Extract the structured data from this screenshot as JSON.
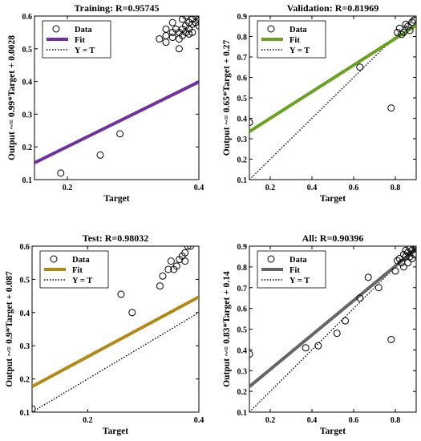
{
  "chart_data": [
    {
      "type": "scatter",
      "title": "Training: R=0.95745",
      "xlabel": "Target",
      "ylabel": "Output ~= 0.99*Target + 0.0028",
      "xlim": [
        0.15,
        0.4
      ],
      "ylim": [
        0.1,
        0.6
      ],
      "xticks": [
        0.2,
        0.4
      ],
      "xticklabels": [
        "0.2",
        "0.4"
      ],
      "yticks": [
        0.1,
        0.2,
        0.3,
        0.4,
        0.5,
        0.6
      ],
      "yticklabels": [
        "0.1",
        "0.2",
        "0.3",
        "0.4",
        "0.5",
        "0.6"
      ],
      "fit_color": "#7030A0",
      "fit": {
        "slope": 0.99,
        "intercept": 0.0028
      },
      "legend": {
        "position": "top-left",
        "entries": [
          "Data",
          "Fit",
          "Y = T"
        ]
      },
      "points": [
        [
          0.19,
          0.12
        ],
        [
          0.25,
          0.175
        ],
        [
          0.28,
          0.24
        ],
        [
          0.34,
          0.53
        ],
        [
          0.35,
          0.54
        ],
        [
          0.35,
          0.52
        ],
        [
          0.36,
          0.535
        ],
        [
          0.36,
          0.55
        ],
        [
          0.365,
          0.56
        ],
        [
          0.37,
          0.53
        ],
        [
          0.37,
          0.55
        ],
        [
          0.375,
          0.56
        ],
        [
          0.375,
          0.54
        ],
        [
          0.38,
          0.57
        ],
        [
          0.38,
          0.55
        ],
        [
          0.385,
          0.58
        ],
        [
          0.385,
          0.56
        ],
        [
          0.39,
          0.575
        ],
        [
          0.39,
          0.59
        ],
        [
          0.395,
          0.58
        ],
        [
          0.395,
          0.6
        ],
        [
          0.4,
          0.59
        ],
        [
          0.4,
          0.57
        ],
        [
          0.37,
          0.5
        ],
        [
          0.36,
          0.58
        ],
        [
          0.38,
          0.6
        ],
        [
          0.39,
          0.55
        ],
        [
          0.35,
          0.56
        ],
        [
          0.375,
          0.59
        ],
        [
          0.385,
          0.545
        ]
      ]
    },
    {
      "type": "scatter",
      "title": "Validation: R=0.81969",
      "xlabel": "Target",
      "ylabel": "Output ~= 0.65*Target + 0.27",
      "xlim": [
        0.1,
        0.9
      ],
      "ylim": [
        0.1,
        0.9
      ],
      "xticks": [
        0.2,
        0.4,
        0.6,
        0.8
      ],
      "xticklabels": [
        "0.2",
        "0.4",
        "0.6",
        "0.8"
      ],
      "yticks": [
        0.1,
        0.2,
        0.3,
        0.4,
        0.5,
        0.6,
        0.7,
        0.8,
        0.9
      ],
      "yticklabels": [
        "0.1",
        "0.2",
        "0.3",
        "0.4",
        "0.5",
        "0.6",
        "0.7",
        "0.8",
        "0.9"
      ],
      "fit_color": "#6AA121",
      "fit": {
        "slope": 0.65,
        "intercept": 0.27
      },
      "legend": {
        "position": "top-left",
        "entries": [
          "Data",
          "Fit",
          "Y = T"
        ]
      },
      "points": [
        [
          0.1,
          0.38
        ],
        [
          0.63,
          0.65
        ],
        [
          0.78,
          0.45
        ],
        [
          0.81,
          0.82
        ],
        [
          0.82,
          0.84
        ],
        [
          0.84,
          0.82
        ],
        [
          0.85,
          0.86
        ],
        [
          0.86,
          0.85
        ],
        [
          0.87,
          0.83
        ],
        [
          0.88,
          0.87
        ],
        [
          0.89,
          0.88
        ],
        [
          0.83,
          0.81
        ]
      ]
    },
    {
      "type": "scatter",
      "title": "Test: R=0.98032",
      "xlabel": "Target",
      "ylabel": "Output ~= 0.9*Target + 0.087",
      "xlim": [
        0.1,
        0.4
      ],
      "ylim": [
        0.1,
        0.6
      ],
      "xticks": [
        0.2,
        0.4
      ],
      "xticklabels": [
        "0.2",
        "0.4"
      ],
      "yticks": [
        0.1,
        0.2,
        0.3,
        0.4,
        0.5,
        0.6
      ],
      "yticklabels": [
        "0.1",
        "0.2",
        "0.3",
        "0.4",
        "0.5",
        "0.6"
      ],
      "fit_color": "#B38A1A",
      "fit": {
        "slope": 0.9,
        "intercept": 0.087
      },
      "legend": {
        "position": "top-left",
        "entries": [
          "Data",
          "Fit",
          "Y = T"
        ]
      },
      "points": [
        [
          0.1,
          0.11
        ],
        [
          0.26,
          0.455
        ],
        [
          0.28,
          0.4
        ],
        [
          0.33,
          0.48
        ],
        [
          0.335,
          0.51
        ],
        [
          0.345,
          0.53
        ],
        [
          0.35,
          0.555
        ],
        [
          0.355,
          0.53
        ],
        [
          0.36,
          0.54
        ],
        [
          0.365,
          0.56
        ],
        [
          0.37,
          0.57
        ],
        [
          0.375,
          0.58
        ],
        [
          0.38,
          0.6
        ],
        [
          0.385,
          0.6
        ],
        [
          0.375,
          0.555
        ]
      ]
    },
    {
      "type": "scatter",
      "title": "All: R=0.90396",
      "xlabel": "Target",
      "ylabel": "Output ~= 0.83*Target + 0.14",
      "xlim": [
        0.1,
        0.9
      ],
      "ylim": [
        0.1,
        0.9
      ],
      "xticks": [
        0.2,
        0.4,
        0.6,
        0.8
      ],
      "xticklabels": [
        "0.2",
        "0.4",
        "0.6",
        "0.8"
      ],
      "yticks": [
        0.1,
        0.2,
        0.3,
        0.4,
        0.5,
        0.6,
        0.7,
        0.8,
        0.9
      ],
      "yticklabels": [
        "0.1",
        "0.2",
        "0.3",
        "0.4",
        "0.5",
        "0.6",
        "0.7",
        "0.8",
        "0.9"
      ],
      "fit_color": "#666666",
      "fit": {
        "slope": 0.83,
        "intercept": 0.14
      },
      "legend": {
        "position": "top-left",
        "entries": [
          "Data",
          "Fit",
          "Y = T"
        ]
      },
      "points": [
        [
          0.1,
          0.38
        ],
        [
          0.37,
          0.41
        ],
        [
          0.43,
          0.42
        ],
        [
          0.52,
          0.48
        ],
        [
          0.56,
          0.54
        ],
        [
          0.63,
          0.65
        ],
        [
          0.67,
          0.75
        ],
        [
          0.72,
          0.7
        ],
        [
          0.78,
          0.45
        ],
        [
          0.8,
          0.78
        ],
        [
          0.82,
          0.84
        ],
        [
          0.83,
          0.82
        ],
        [
          0.84,
          0.86
        ],
        [
          0.85,
          0.85
        ],
        [
          0.86,
          0.87
        ],
        [
          0.87,
          0.85
        ],
        [
          0.88,
          0.88
        ],
        [
          0.89,
          0.86
        ],
        [
          0.9,
          0.89
        ],
        [
          0.86,
          0.82
        ],
        [
          0.84,
          0.8
        ],
        [
          0.88,
          0.84
        ],
        [
          0.87,
          0.89
        ],
        [
          0.89,
          0.9
        ],
        [
          0.81,
          0.83
        ],
        [
          0.85,
          0.88
        ]
      ]
    }
  ]
}
